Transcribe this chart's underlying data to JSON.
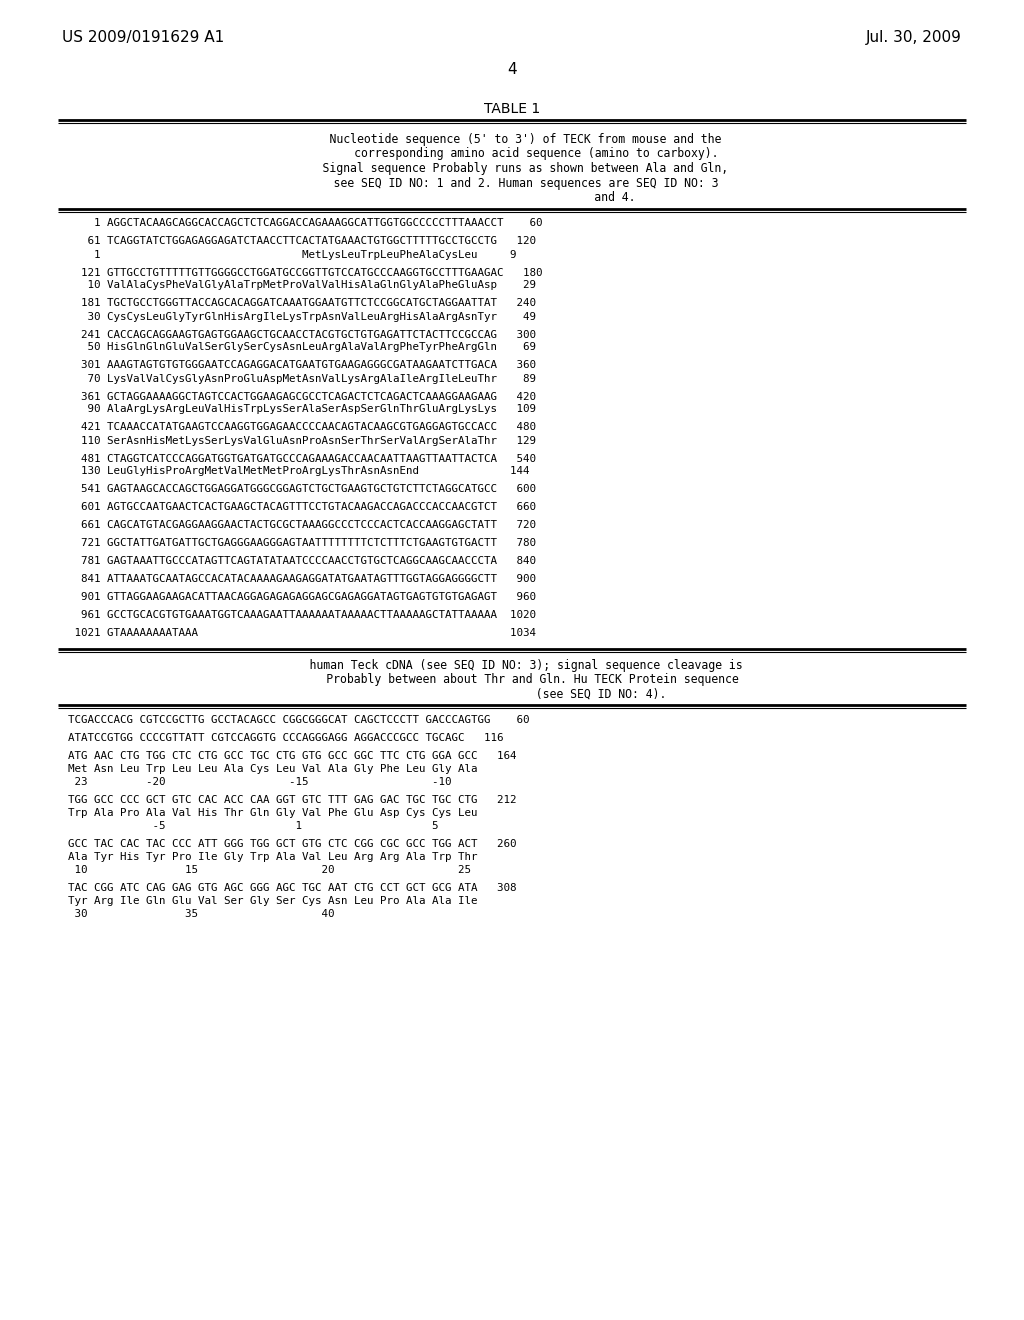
{
  "header_left": "US 2009/0191629 A1",
  "header_right": "Jul. 30, 2009",
  "page_number": "4",
  "table_title": "TABLE 1",
  "desc_lines": [
    "    Nucleotide sequence (5' to 3') of TECK from mouse and the",
    "       corresponding amino acid sequence (amino to carboxy).",
    "    Signal sequence Probably runs as shown between Ala and Gln,",
    "    see SEQ ID NO: 1 and 2. Human sequences are SEQ ID NO: 3",
    "                              and 4."
  ],
  "sequence_lines": [
    [
      "    1 AGGCTACAAGCAGGCACCAGCTCTCAGGACCAGAAAGGCATTGGTGGCCCCCTTTAAACCT    60",
      ""
    ],
    [
      "   61 TCAGGTATCTGGAGAGGAGATCTAACCTTCACTATGAAACTGTGGCTTTTTGCCTGCCTG   120",
      "    1                               MetLysLeuTrpLeuPheAlaCysLeu     9"
    ],
    [
      "  121 GTTGCCTGTTTTTGTTGGGGCCTGGATGCCGGTTGTCCATGCCCAAGGTGCCTTTGAAGAC   180",
      "   10 ValAlaCysPheValGlyAlaTrpMetProValValHisAlaGlnGlyAlaPheGluAsp    29"
    ],
    [
      "  181 TGCTGCCTGGGTTACCAGCACAGGATCAAATGGAATGTTCTCCGGCATGCTAGGAATTAT   240",
      "   30 CysCysLeuGlyTyrGlnHisArgIleLysTrpAsnValLeuArgHisAlaArgAsnTyr    49"
    ],
    [
      "  241 CACCAGCAGGAAGTGAGTGGAAGCTGCAACCTACGTGCTGTGAGATTCTACTTCCGCCAG   300",
      "   50 HisGlnGlnGluValSerGlySerCysAsnLeuArgAlaValArgPheTyrPheArgGln    69"
    ],
    [
      "  301 AAAGTAGTGTGTGGGAATCCAGAGGACATGAATGTGAAGAGGGCGATAAGAATCTTGACA   360",
      "   70 LysValValCysGlyAsnProGluAspMetAsnValLysArgAlaIleArgIleLeuThr    89"
    ],
    [
      "  361 GCTAGGAAAAGGCTAGTCCACTGGAAGAGCGCCTCAGACTCTCAGACTCAAAGGAAGAAG   420",
      "   90 AlaArgLysArgLeuValHisTrpLysSerAlaSerAspSerGlnThrGluArgLysLys   109"
    ],
    [
      "  421 TCAAACCATATGAAGTCCAAGGTGGAGAACCCCAACAGTACAAGCGTGAGGAGTGCCACC   480",
      "  110 SerAsnHisMetLysSerLysValGluAsnProAsnSerThrSerValArgSerAlaThr   129"
    ],
    [
      "  481 CTAGGTCATCCCAGGATGGTGATGATGCCCAGAAAGACCAACAATTAAGTTAATTACTCA   540",
      "  130 LeuGlyHisProArgMetValMetMetProArgLysThrAsnAsnEnd              144"
    ],
    [
      "  541 GAGTAAGCACCAGCTGGAGGATGGGCGGAGTCTGCTGAAGTGCTGTCTTCTAGGCATGCC   600",
      ""
    ],
    [
      "  601 AGTGCCAATGAACTCACTGAAGCTACAGTTTCCTGTACAAGACCAGACCCACCAACGTCT   660",
      ""
    ],
    [
      "  661 CAGCATGTACGAGGAAGGAACTACTGCGCTAAAGGCCCTCCCACTCACCAAGGAGCTATT   720",
      ""
    ],
    [
      "  721 GGCTATTGATGATTGCTGAGGGAAGGGAGTAATTTTTTTTCTCTTTCTGAAGTGTGACTT   780",
      ""
    ],
    [
      "  781 GAGTAAATTGCCCATAGTTCAGTATATAATCCCCAACCTGTGCTCAGGCAAGCAACCCTA   840",
      ""
    ],
    [
      "  841 ATTAAATGCAATAGCCACATACAAAAGAAGAGGATATGAATAGTTTGGTAGGAGGGGCTT   900",
      ""
    ],
    [
      "  901 GTTAGGAAGAAGACATTAACAGGAGAGAGAGGAGCGAGAGGATAGTGAGTGTGTGAGAGT   960",
      ""
    ],
    [
      "  961 GCCTGCACGTGTGAAATGGTCAAAGAATTAAAAAATAAAAACTTAAAAAGCTATTAAAAA  1020",
      ""
    ],
    [
      " 1021 GTAAAAAAAATAAA                                                1034",
      ""
    ]
  ],
  "sec2_desc_lines": [
    "    human Teck cDNA (see SEQ ID NO: 3); signal sequence cleavage is",
    "      Probably between about Thr and Gln. Hu TECK Protein sequence",
    "                          (see SEQ ID NO: 4)."
  ],
  "sequence2_blocks": [
    [
      "TCGACCCACG CGTCCGCTTG GCCTACAGCC CGGCGGGCAT CAGCTCCCTT GACCCAGTGG    60",
      ""
    ],
    [
      "ATATCCGTGG CCCCGTTATT CGTCCAGGTG CCCAGGGAGG AGGACCCGCC TGCAGC   116",
      ""
    ],
    [
      "ATG AAC CTG TGG CTC CTG GCC TGC CTG GTG GCC GGC TTC CTG GGA GCC   164",
      "Met Asn Leu Trp Leu Leu Ala Cys Leu Val Ala Gly Phe Leu Gly Ala",
      " 23         -20                   -15                   -10"
    ],
    [
      "TGG GCC CCC GCT GTC CAC ACC CAA GGT GTC TTT GAG GAC TGC TGC CTG   212",
      "Trp Ala Pro Ala Val His Thr Gln Gly Val Phe Glu Asp Cys Cys Leu",
      "             -5                    1                    5"
    ],
    [
      "GCC TAC CAC TAC CCC ATT GGG TGG GCT GTG CTC CGG CGC GCC TGG ACT   260",
      "Ala Tyr His Tyr Pro Ile Gly Trp Ala Val Leu Arg Arg Ala Trp Thr",
      " 10               15                   20                   25"
    ],
    [
      "TAC CGG ATC CAG GAG GTG AGC GGG AGC TGC AAT CTG CCT GCT GCG ATA   308",
      "Tyr Arg Ile Gln Glu Val Ser Gly Ser Cys Asn Leu Pro Ala Ala Ile",
      " 30               35                   40"
    ]
  ],
  "background_color": "#ffffff",
  "text_color": "#000000"
}
